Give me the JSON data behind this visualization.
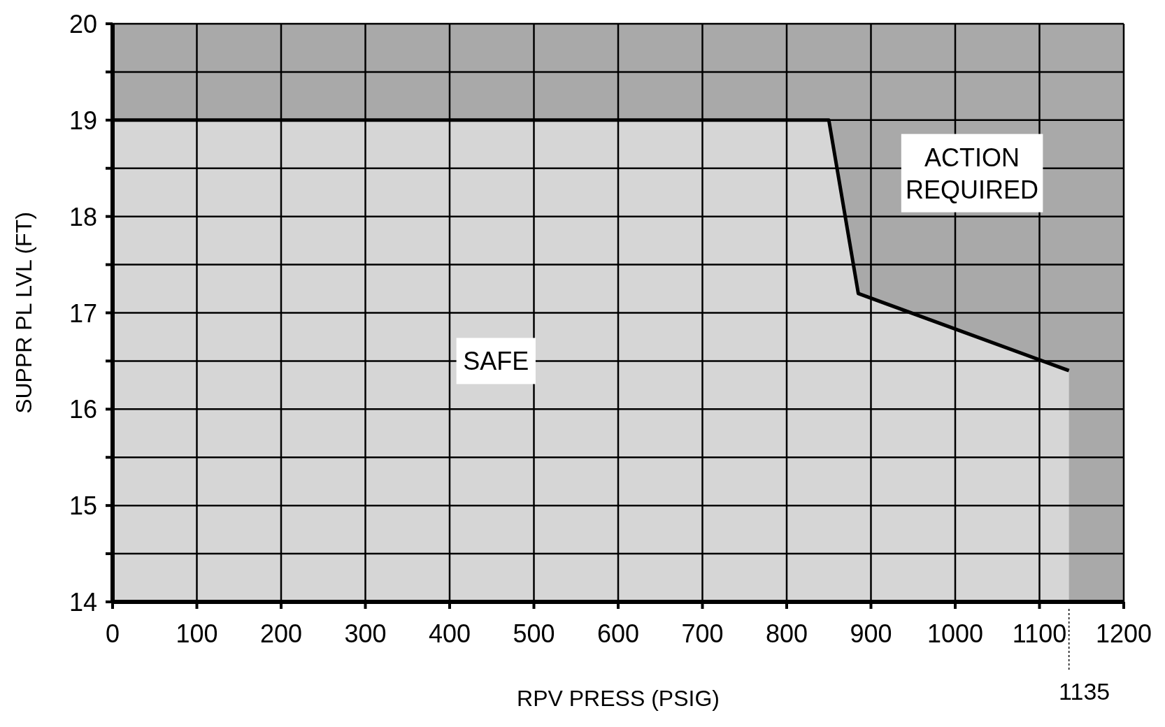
{
  "chart_data": {
    "type": "area",
    "xlabel": "RPV PRESS (PSIG)",
    "ylabel": "SUPPR PL LVL (FT)",
    "xlim": [
      0,
      1200
    ],
    "xticks": [
      0,
      100,
      200,
      300,
      400,
      500,
      600,
      700,
      800,
      900,
      1000,
      1100,
      1200
    ],
    "ylim": [
      14,
      20
    ],
    "yticks": [
      14,
      {
        "value": 14.5,
        "label": null
      },
      15,
      {
        "value": 15.5,
        "label": null
      },
      16,
      {
        "value": 16.5,
        "label": null
      },
      17,
      {
        "value": 17.5,
        "label": null
      },
      18,
      {
        "value": 18.5,
        "label": null
      },
      19,
      {
        "value": 19.5,
        "label": null
      },
      20
    ],
    "grid": true,
    "series": [
      {
        "color": "#d6d6d6",
        "x": [
          0,
          850,
          885,
          1135
        ],
        "values": [
          19,
          19,
          17.2,
          16.4
        ]
      }
    ],
    "annotations": [
      "SAFE",
      "ACTION\nREQUIRED",
      "1135"
    ]
  }
}
